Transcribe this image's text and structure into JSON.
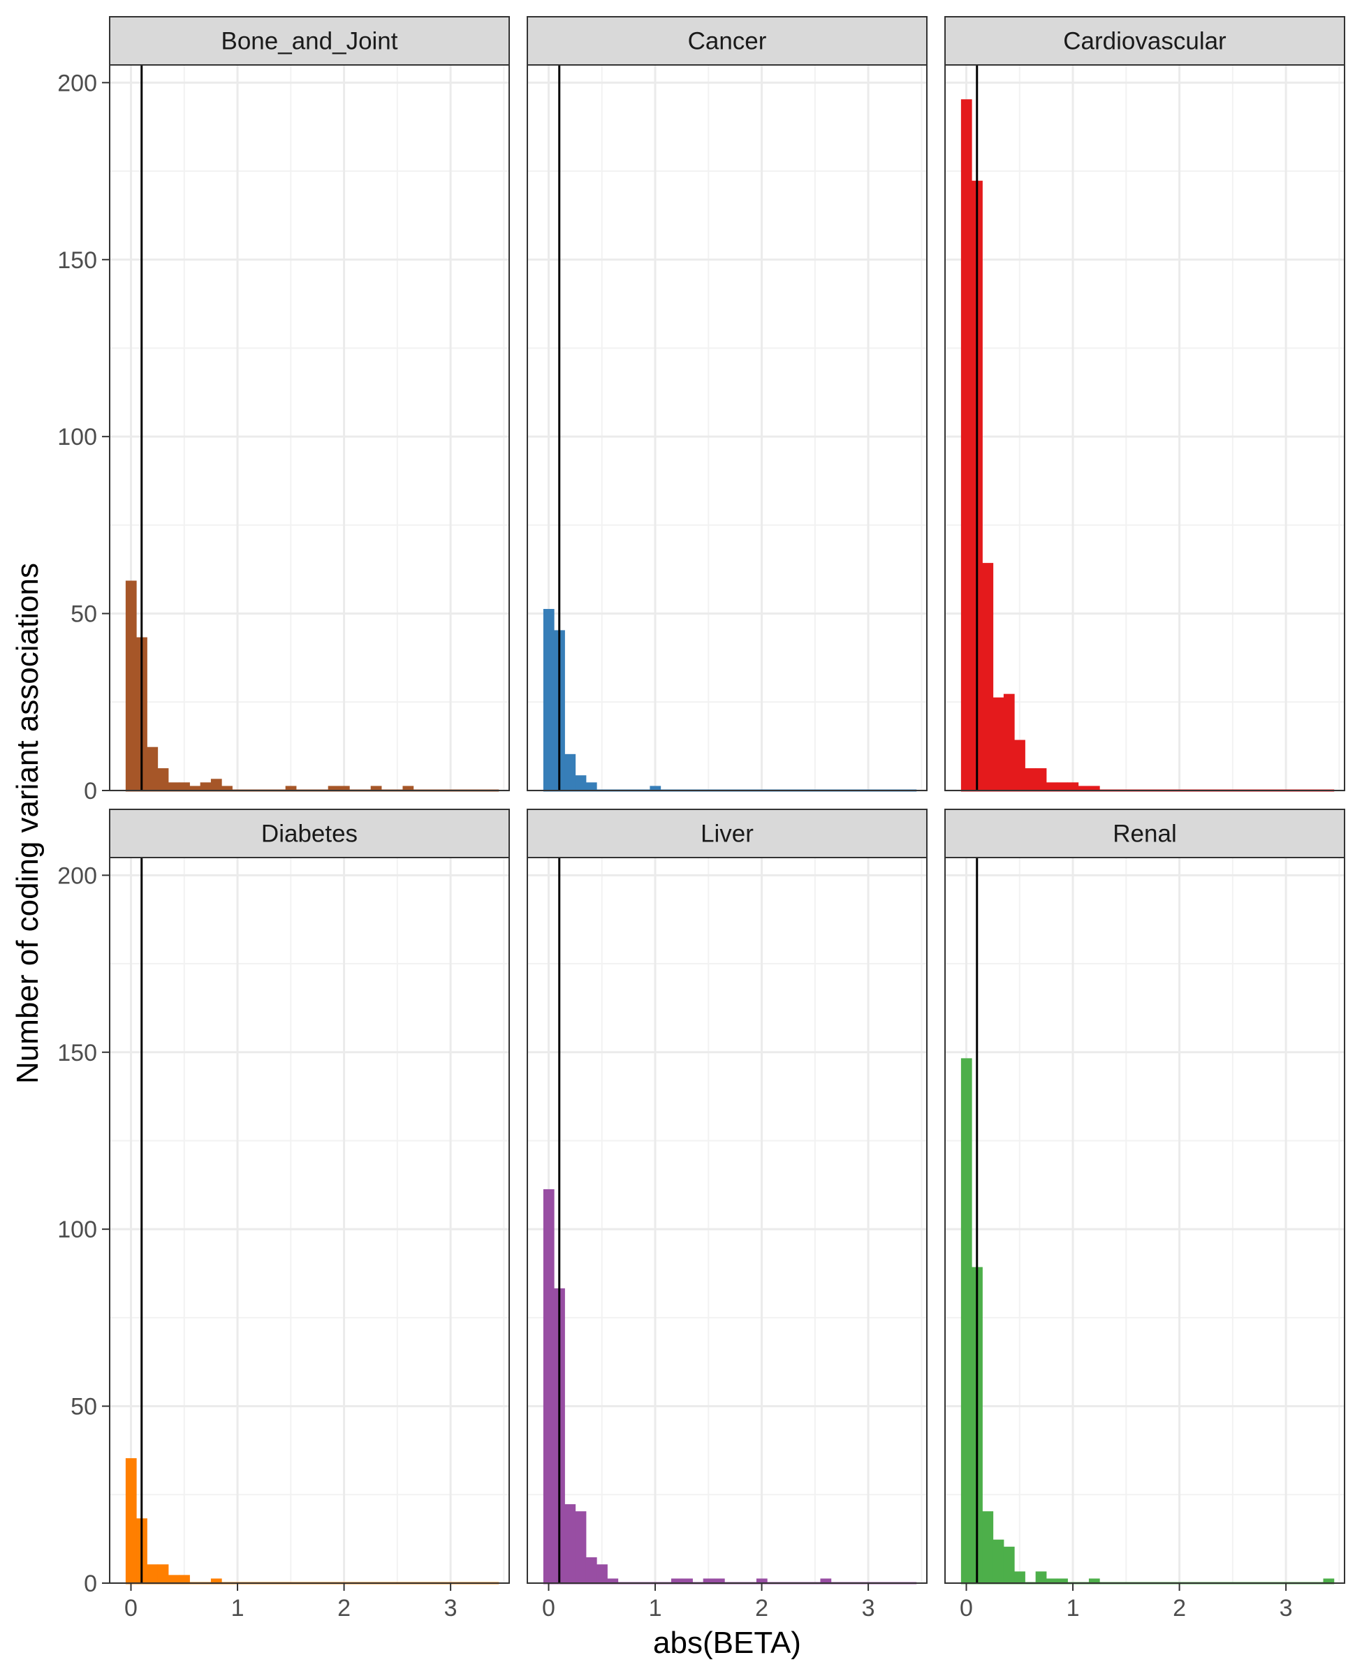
{
  "chart_data": {
    "type": "bar",
    "facet_layout": "2 rows x 3 columns, shared axes",
    "xlabel": "abs(BETA)",
    "ylabel": "Number of coding variant associations",
    "xlim": [
      -0.2,
      3.55
    ],
    "ylim": [
      0,
      205
    ],
    "x_ticks": [
      0,
      1,
      2,
      3
    ],
    "x_tick_labels": [
      "0",
      "1",
      "2",
      "3"
    ],
    "y_ticks": [
      0,
      50,
      100,
      150,
      200
    ],
    "y_tick_labels": [
      "0",
      "50",
      "100",
      "150",
      "200"
    ],
    "bin_width": 0.1,
    "bin_start": -0.05,
    "vline_x": 0.1,
    "grid": true,
    "legend": "none",
    "facets": [
      {
        "label": "Bone_and_Joint",
        "color": "#A65628",
        "counts": [
          59,
          43,
          12,
          6,
          2,
          2,
          1,
          2,
          3,
          1,
          0,
          0,
          0,
          0,
          0,
          1,
          0,
          0,
          0,
          1,
          1,
          0,
          0,
          1,
          0,
          0,
          1,
          0,
          0,
          0,
          0,
          0,
          0,
          0,
          0
        ]
      },
      {
        "label": "Cancer",
        "color": "#377EB8",
        "counts": [
          51,
          45,
          10,
          4,
          2,
          0,
          0,
          0,
          0,
          0,
          1,
          0,
          0,
          0,
          0,
          0,
          0,
          0,
          0,
          0,
          0,
          0,
          0,
          0,
          0,
          0,
          0,
          0,
          0,
          0,
          0,
          0,
          0,
          0,
          0
        ]
      },
      {
        "label": "Cardiovascular",
        "color": "#E41A1C",
        "counts": [
          195,
          172,
          64,
          26,
          27,
          14,
          6,
          6,
          2,
          2,
          2,
          1,
          1,
          0,
          0,
          0,
          0,
          0,
          0,
          0,
          0,
          0,
          0,
          0,
          0,
          0,
          0,
          0,
          0,
          0,
          0,
          0,
          0,
          0,
          0
        ]
      },
      {
        "label": "Diabetes",
        "color": "#FF7F00",
        "counts": [
          35,
          18,
          5,
          5,
          2,
          2,
          0,
          0,
          1,
          0,
          0,
          0,
          0,
          0,
          0,
          0,
          0,
          0,
          0,
          0,
          0,
          0,
          0,
          0,
          0,
          0,
          0,
          0,
          0,
          0,
          0,
          0,
          0,
          0,
          0
        ]
      },
      {
        "label": "Liver",
        "color": "#984EA3",
        "counts": [
          111,
          83,
          22,
          20,
          7,
          5,
          1,
          0,
          0,
          0,
          0,
          0,
          1,
          1,
          0,
          1,
          1,
          0,
          0,
          0,
          1,
          0,
          0,
          0,
          0,
          0,
          1,
          0,
          0,
          0,
          0,
          0,
          0,
          0,
          0
        ]
      },
      {
        "label": "Renal",
        "color": "#4DAF4A",
        "counts": [
          148,
          89,
          20,
          12,
          10,
          3,
          0,
          3,
          1,
          1,
          0,
          0,
          1,
          0,
          0,
          0,
          0,
          0,
          0,
          0,
          0,
          0,
          0,
          0,
          0,
          0,
          0,
          0,
          0,
          0,
          0,
          0,
          0,
          0,
          1
        ]
      }
    ]
  }
}
